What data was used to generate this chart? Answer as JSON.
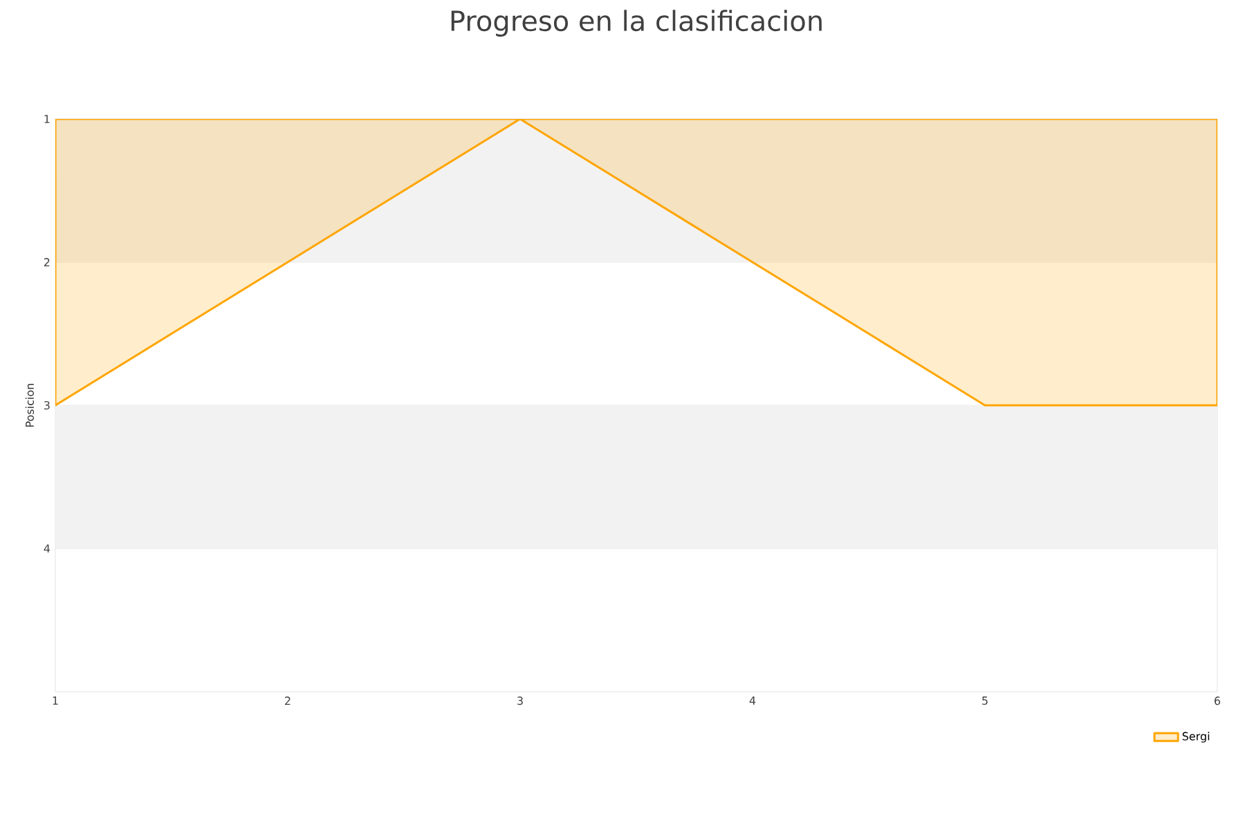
{
  "chart_data": {
    "type": "area",
    "title": "Progreso en la clasificacion",
    "ylabel": "Posicion",
    "x": [
      1,
      2,
      3,
      4,
      5,
      6
    ],
    "series": [
      {
        "name": "Sergi",
        "color": "#ffa500",
        "values": [
          3,
          2,
          1,
          2,
          3,
          3
        ]
      }
    ],
    "xlim": [
      1,
      6
    ],
    "xticks": [
      1,
      2,
      3,
      4,
      5,
      6
    ],
    "ylim": [
      5,
      1
    ],
    "yticks": [
      1,
      2,
      3,
      4
    ],
    "bands": [
      {
        "axis": "y",
        "from": 1,
        "to": 2,
        "color": "#f2f2f2"
      },
      {
        "axis": "y",
        "from": 3,
        "to": 4,
        "color": "#f2f2f2"
      }
    ],
    "grid": "y",
    "legend": "bottom right",
    "marker": "none"
  }
}
